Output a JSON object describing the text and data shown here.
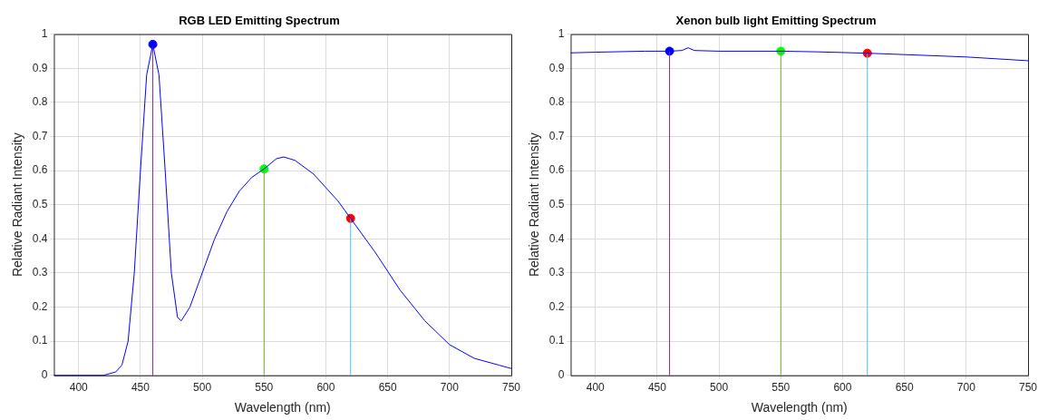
{
  "chart_data": [
    {
      "type": "line",
      "title": "RGB LED Emitting Spectrum",
      "xlabel": "Wavelength (nm)",
      "ylabel": "Relative Radiant Intensity",
      "xlim": [
        380,
        750
      ],
      "ylim": [
        0,
        1
      ],
      "xticks": [
        400,
        450,
        500,
        550,
        600,
        650,
        700,
        750
      ],
      "yticks": [
        0,
        0.1,
        0.2,
        0.3,
        0.4,
        0.5,
        0.6,
        0.7,
        0.8,
        0.9,
        1
      ],
      "grid": true,
      "legend": false,
      "series": [
        {
          "type": "line",
          "color": "#0000ff",
          "x": [
            380,
            420,
            430,
            435,
            440,
            445,
            450,
            455,
            460,
            465,
            470,
            475,
            480,
            483,
            490,
            500,
            510,
            520,
            530,
            540,
            550,
            560,
            566,
            575,
            590,
            600,
            610,
            620,
            640,
            660,
            680,
            700,
            720,
            740,
            750
          ],
          "values": [
            0,
            0,
            0.01,
            0.03,
            0.1,
            0.3,
            0.6,
            0.88,
            0.97,
            0.88,
            0.6,
            0.3,
            0.17,
            0.16,
            0.2,
            0.3,
            0.4,
            0.48,
            0.54,
            0.58,
            0.605,
            0.635,
            0.64,
            0.63,
            0.59,
            0.55,
            0.51,
            0.46,
            0.36,
            0.25,
            0.16,
            0.09,
            0.05,
            0.03,
            0.02
          ]
        },
        {
          "type": "line",
          "color": "#7e2f8e",
          "x": [
            460,
            460
          ],
          "values": [
            0,
            0.97
          ]
        },
        {
          "type": "line",
          "color": "#77ac30",
          "x": [
            550,
            550
          ],
          "values": [
            0,
            0.605
          ]
        },
        {
          "type": "line",
          "color": "#4dbeee",
          "x": [
            620,
            620
          ],
          "values": [
            0,
            0.46
          ]
        },
        {
          "type": "scatter",
          "marker": "circle",
          "x": [
            460,
            550,
            620
          ],
          "values": [
            0.97,
            0.605,
            0.46
          ],
          "colors": [
            "#0000ff",
            "#00ff00",
            "#ff0000"
          ]
        }
      ]
    },
    {
      "type": "line",
      "title": "Xenon bulb light Emitting Spectrum",
      "xlabel": "Wavelength (nm)",
      "ylabel": "Relative Radiant Intensity",
      "xlim": [
        380,
        750
      ],
      "ylim": [
        0,
        1
      ],
      "xticks": [
        400,
        450,
        500,
        550,
        600,
        650,
        700,
        750
      ],
      "yticks": [
        0,
        0.1,
        0.2,
        0.3,
        0.4,
        0.5,
        0.6,
        0.7,
        0.8,
        0.9,
        1
      ],
      "grid": true,
      "legend": false,
      "series": [
        {
          "type": "line",
          "color": "#0000ff",
          "x": [
            380,
            400,
            440,
            460,
            470,
            475,
            480,
            500,
            550,
            580,
            620,
            650,
            700,
            750
          ],
          "values": [
            0.945,
            0.947,
            0.95,
            0.95,
            0.952,
            0.96,
            0.952,
            0.95,
            0.95,
            0.948,
            0.944,
            0.94,
            0.933,
            0.922
          ]
        },
        {
          "type": "line",
          "color": "#7e2f8e",
          "x": [
            460,
            460
          ],
          "values": [
            0,
            0.95
          ]
        },
        {
          "type": "line",
          "color": "#77ac30",
          "x": [
            550,
            550
          ],
          "values": [
            0,
            0.95
          ]
        },
        {
          "type": "line",
          "color": "#4dbeee",
          "x": [
            620,
            620
          ],
          "values": [
            0,
            0.944
          ]
        },
        {
          "type": "scatter",
          "marker": "circle",
          "x": [
            460,
            550,
            620
          ],
          "values": [
            0.95,
            0.95,
            0.944
          ],
          "colors": [
            "#0000ff",
            "#00ff00",
            "#ff0000"
          ]
        }
      ]
    }
  ]
}
